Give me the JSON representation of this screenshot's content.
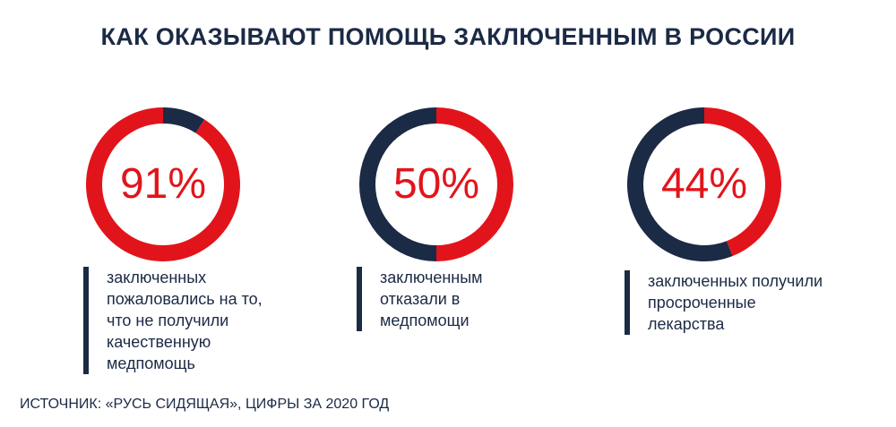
{
  "title": "КАК ОКАЗЫВАЮТ ПОМОЩЬ ЗАКЛЮЧЕННЫМ В РОССИИ",
  "source": "ИСТОЧНИК: «РУСЬ СИДЯЩАЯ», ЦИФРЫ ЗА 2020 ГОД",
  "colors": {
    "accent": "#e2141b",
    "dark": "#1b2a45"
  },
  "chart_data": [
    {
      "type": "pie",
      "label": "91%",
      "values": [
        91,
        9
      ],
      "caption": "заключенных\nпожаловались на то,\nчто не получили\nкачественную\nмедпомощь"
    },
    {
      "type": "pie",
      "label": "50%",
      "values": [
        50,
        50
      ],
      "caption": "заключенным\nотказали в\nмедпомощи"
    },
    {
      "type": "pie",
      "label": "44%",
      "values": [
        44,
        56
      ],
      "caption": "заключенных получили\nпросроченные\nлекарства"
    }
  ]
}
